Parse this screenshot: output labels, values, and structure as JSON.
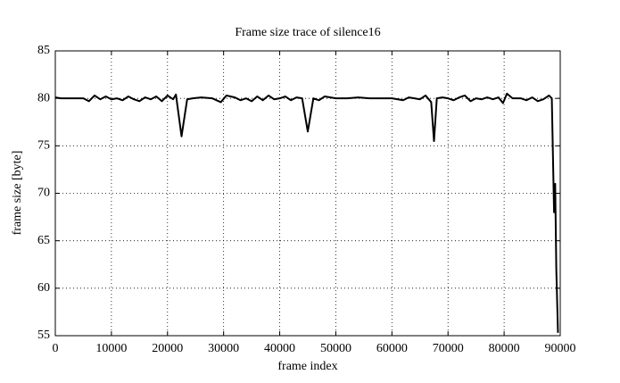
{
  "chart_data": {
    "type": "line",
    "title": "Frame size trace of silence16",
    "xlabel": "frame index",
    "ylabel": "frame size [byte]",
    "color": "#000000",
    "grid": true,
    "xlim": [
      0,
      90000
    ],
    "ylim": [
      55,
      85
    ],
    "xticks": [
      0,
      10000,
      20000,
      30000,
      40000,
      50000,
      60000,
      70000,
      80000,
      90000
    ],
    "yticks": [
      55,
      60,
      65,
      70,
      75,
      80,
      85
    ],
    "x": [
      0,
      1000,
      2000,
      3000,
      4000,
      5000,
      6000,
      7000,
      8000,
      9000,
      10000,
      11000,
      12000,
      13000,
      14000,
      15000,
      16000,
      17000,
      18000,
      19000,
      20000,
      21000,
      21500,
      22500,
      23500,
      24500,
      26000,
      28000,
      29500,
      30500,
      32000,
      33000,
      34000,
      35000,
      36000,
      37000,
      38000,
      39000,
      40000,
      41000,
      42000,
      43000,
      44000,
      45000,
      46000,
      47000,
      48000,
      50000,
      52000,
      54000,
      56000,
      58000,
      60000,
      62000,
      63000,
      64000,
      65000,
      66000,
      67000,
      67500,
      68000,
      69000,
      70000,
      71000,
      72000,
      73000,
      74000,
      75000,
      76000,
      77000,
      78000,
      79000,
      79800,
      80500,
      81500,
      83000,
      84000,
      85000,
      86000,
      87000,
      88000,
      88500,
      88900,
      89100,
      89300,
      89600
    ],
    "values": [
      80.1,
      80.0,
      80.0,
      80.0,
      80.0,
      80.0,
      79.7,
      80.3,
      79.9,
      80.2,
      79.9,
      80.0,
      79.8,
      80.2,
      79.9,
      79.7,
      80.1,
      79.9,
      80.2,
      79.7,
      80.3,
      79.9,
      80.4,
      76.0,
      79.9,
      80.0,
      80.1,
      80.0,
      79.6,
      80.3,
      80.1,
      79.8,
      80.0,
      79.7,
      80.2,
      79.8,
      80.3,
      79.9,
      80.0,
      80.2,
      79.8,
      80.1,
      80.0,
      76.5,
      80.0,
      79.8,
      80.2,
      80.0,
      80.0,
      80.1,
      80.0,
      80.0,
      80.0,
      79.8,
      80.1,
      80.0,
      79.9,
      80.3,
      79.6,
      75.5,
      80.0,
      80.1,
      80.0,
      79.8,
      80.1,
      80.3,
      79.7,
      80.0,
      79.9,
      80.1,
      79.9,
      80.1,
      79.5,
      80.5,
      80.0,
      80.0,
      79.8,
      80.1,
      79.7,
      79.9,
      80.3,
      80.0,
      68.0,
      71.0,
      62.0,
      55.3
    ]
  }
}
